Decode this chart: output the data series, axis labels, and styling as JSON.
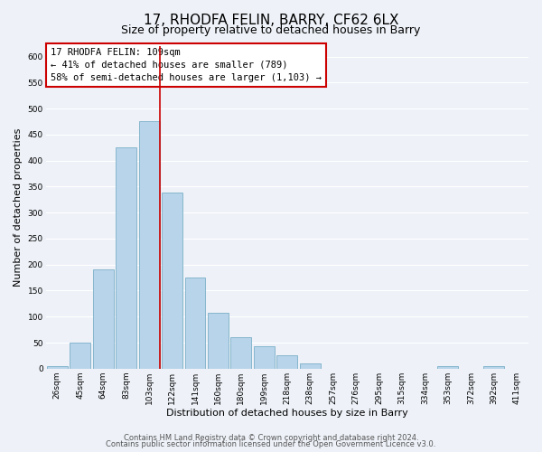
{
  "title": "17, RHODFA FELIN, BARRY, CF62 6LX",
  "subtitle": "Size of property relative to detached houses in Barry",
  "xlabel": "Distribution of detached houses by size in Barry",
  "ylabel": "Number of detached properties",
  "bar_labels": [
    "26sqm",
    "45sqm",
    "64sqm",
    "83sqm",
    "103sqm",
    "122sqm",
    "141sqm",
    "160sqm",
    "180sqm",
    "199sqm",
    "218sqm",
    "238sqm",
    "257sqm",
    "276sqm",
    "295sqm",
    "315sqm",
    "334sqm",
    "353sqm",
    "372sqm",
    "392sqm",
    "411sqm"
  ],
  "bar_values": [
    5,
    50,
    190,
    425,
    475,
    338,
    175,
    107,
    60,
    43,
    25,
    10,
    0,
    0,
    0,
    0,
    0,
    5,
    0,
    5,
    0
  ],
  "bar_color": "#b8d4ea",
  "bar_edge_color": "#7aafc8",
  "highlight_bar_index": 4,
  "highlight_line_color": "#cc0000",
  "annotation_text_line1": "17 RHODFA FELIN: 109sqm",
  "annotation_text_line2": "← 41% of detached houses are smaller (789)",
  "annotation_text_line3": "58% of semi-detached houses are larger (1,103) →",
  "annotation_box_color": "#ffffff",
  "annotation_box_edge": "#cc0000",
  "ylim": [
    0,
    620
  ],
  "yticks": [
    0,
    50,
    100,
    150,
    200,
    250,
    300,
    350,
    400,
    450,
    500,
    550,
    600
  ],
  "footer_line1": "Contains HM Land Registry data © Crown copyright and database right 2024.",
  "footer_line2": "Contains public sector information licensed under the Open Government Licence v3.0.",
  "bg_color": "#eef2f8",
  "plot_bg_color": "#eef2f8",
  "grid_color": "#ffffff",
  "title_fontsize": 11,
  "subtitle_fontsize": 9,
  "label_fontsize": 8,
  "tick_fontsize": 6.5,
  "footer_fontsize": 6
}
